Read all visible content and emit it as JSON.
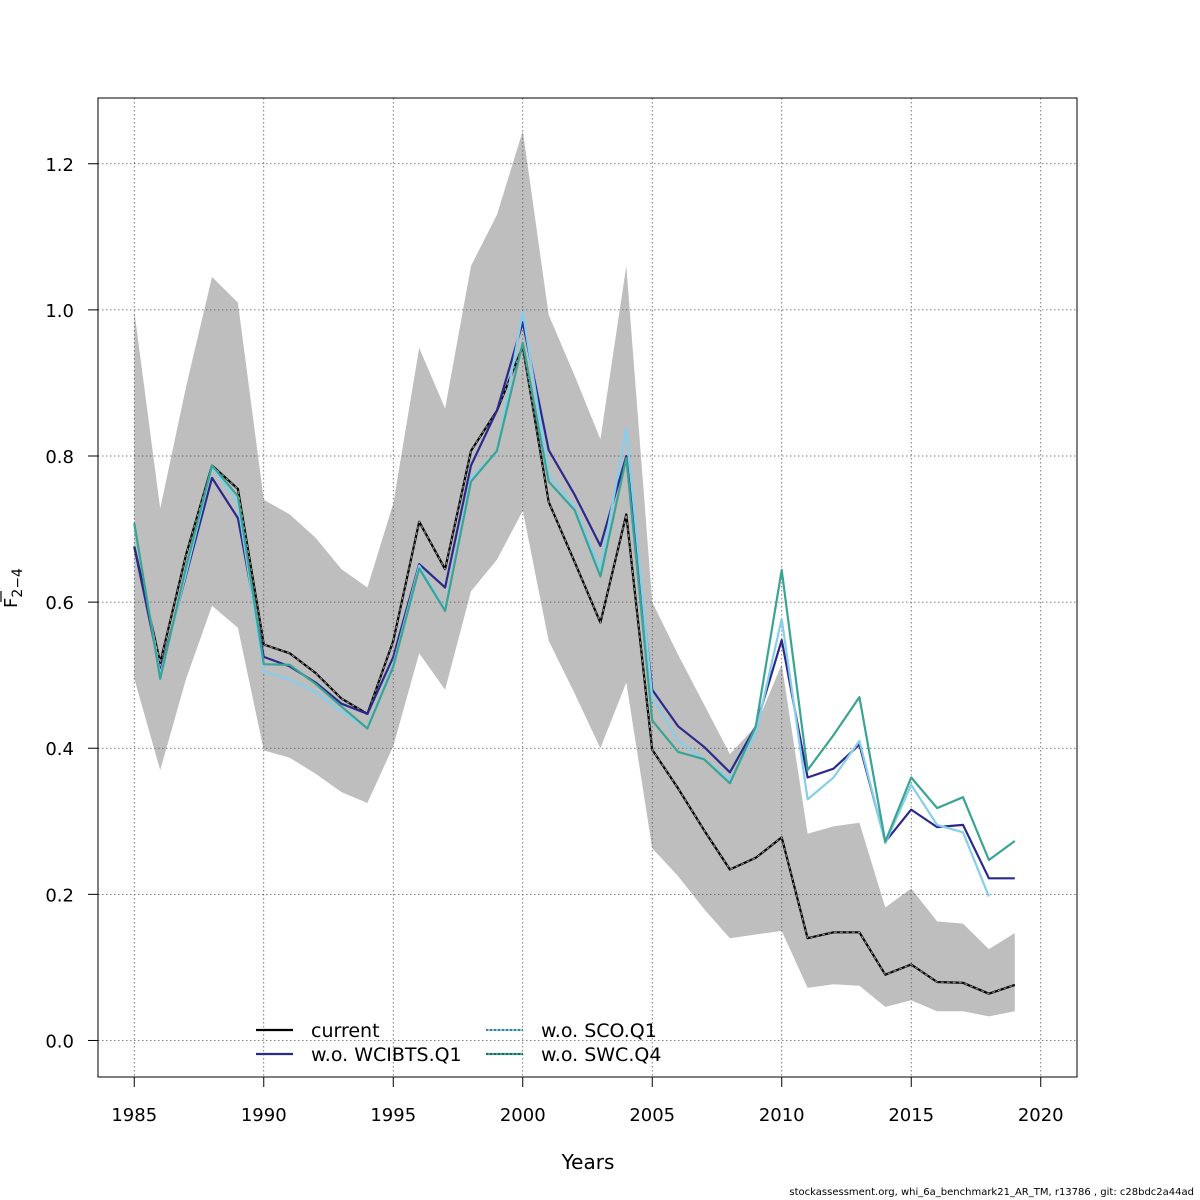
{
  "chart_data": {
    "type": "line",
    "xlabel": "Years",
    "ylabel_main": "F",
    "ylabel_sub": "2−4",
    "xlim": [
      1983.6,
      2021.4
    ],
    "ylim": [
      -0.05,
      1.29
    ],
    "xticks": [
      1985,
      1990,
      1995,
      2000,
      2005,
      2010,
      2015,
      2020
    ],
    "yticks": [
      0.0,
      0.2,
      0.4,
      0.6,
      0.8,
      1.0,
      1.2
    ],
    "ytick_labels": [
      "0.0",
      "0.2",
      "0.4",
      "0.6",
      "0.8",
      "1.0",
      "1.2"
    ],
    "grid": true,
    "legend_position": "bottom-left",
    "x": [
      1985,
      1986,
      1987,
      1988,
      1989,
      1990,
      1991,
      1992,
      1993,
      1994,
      1995,
      1996,
      1997,
      1998,
      1999,
      2000,
      2001,
      2002,
      2003,
      2004,
      2005,
      2006,
      2007,
      2008,
      2009,
      2010,
      2011,
      2012,
      2013,
      2014,
      2015,
      2016,
      2017,
      2018,
      2019
    ],
    "band": {
      "color": "#bebebe",
      "lower": [
        0.495,
        0.37,
        0.495,
        0.595,
        0.565,
        0.397,
        0.387,
        0.365,
        0.34,
        0.325,
        0.403,
        0.53,
        0.48,
        0.615,
        0.658,
        0.725,
        0.547,
        0.475,
        0.4,
        0.49,
        0.263,
        0.225,
        0.18,
        0.14,
        0.145,
        0.15,
        0.072,
        0.077,
        0.075,
        0.046,
        0.055,
        0.04,
        0.04,
        0.033,
        0.04
      ],
      "upper": [
        0.998,
        0.728,
        0.895,
        1.045,
        1.01,
        0.74,
        0.72,
        0.688,
        0.645,
        0.62,
        0.735,
        0.948,
        0.865,
        1.06,
        1.13,
        1.245,
        0.993,
        0.91,
        0.823,
        1.06,
        0.6,
        0.528,
        0.46,
        0.392,
        0.43,
        0.515,
        0.283,
        0.293,
        0.298,
        0.182,
        0.208,
        0.163,
        0.16,
        0.125,
        0.147
      ]
    },
    "series": [
      {
        "name": "current",
        "color": "#000000",
        "dash": false,
        "values": [
          0.676,
          0.517,
          0.665,
          0.787,
          0.755,
          0.542,
          0.53,
          0.503,
          0.468,
          0.447,
          0.547,
          0.71,
          0.645,
          0.807,
          0.862,
          0.95,
          0.737,
          0.655,
          0.572,
          0.72,
          0.398,
          0.345,
          0.288,
          0.234,
          0.25,
          0.278,
          0.14,
          0.148,
          0.148,
          0.09,
          0.104,
          0.08,
          0.079,
          0.064,
          0.076
        ]
      },
      {
        "name": "w.o. WCIBTS.Q1",
        "color": "#2b2a8c",
        "dash": false,
        "values": [
          0.676,
          0.505,
          0.637,
          0.77,
          0.715,
          0.525,
          0.512,
          0.49,
          0.461,
          0.447,
          0.525,
          0.652,
          0.62,
          0.787,
          0.862,
          0.983,
          0.808,
          0.747,
          0.677,
          0.8,
          0.48,
          0.43,
          0.402,
          0.367,
          0.43,
          0.548,
          0.36,
          0.372,
          0.405,
          0.272,
          0.316,
          0.292,
          0.295,
          0.222,
          0.222
        ]
      },
      {
        "name": "w.o. SCO.Q1",
        "color": "#87ceeb",
        "dash": true,
        "values": [
          0.706,
          0.5,
          0.64,
          0.785,
          0.735,
          0.505,
          0.494,
          0.477,
          0.45,
          0.428,
          0.515,
          0.65,
          0.59,
          0.77,
          0.805,
          0.997,
          0.775,
          0.73,
          0.645,
          0.837,
          0.47,
          0.41,
          0.385,
          0.357,
          0.42,
          0.577,
          0.33,
          0.36,
          0.41,
          0.27,
          0.35,
          0.295,
          0.285,
          0.197,
          null
        ]
      },
      {
        "name": "w.o. SWC.Q4",
        "color": "#3aa494",
        "dash": true,
        "values": [
          0.708,
          0.495,
          0.648,
          0.787,
          0.745,
          0.515,
          0.514,
          0.488,
          0.457,
          0.427,
          0.512,
          0.646,
          0.588,
          0.765,
          0.807,
          0.955,
          0.765,
          0.726,
          0.635,
          0.797,
          0.438,
          0.395,
          0.385,
          0.352,
          0.43,
          0.644,
          0.37,
          0.418,
          0.47,
          0.272,
          0.36,
          0.318,
          0.333,
          0.247,
          0.273
        ]
      }
    ]
  },
  "footer_text": "stockassessment.org, whi_6a_benchmark21_AR_TM, r13786 , git: c28bdc2a44ad"
}
